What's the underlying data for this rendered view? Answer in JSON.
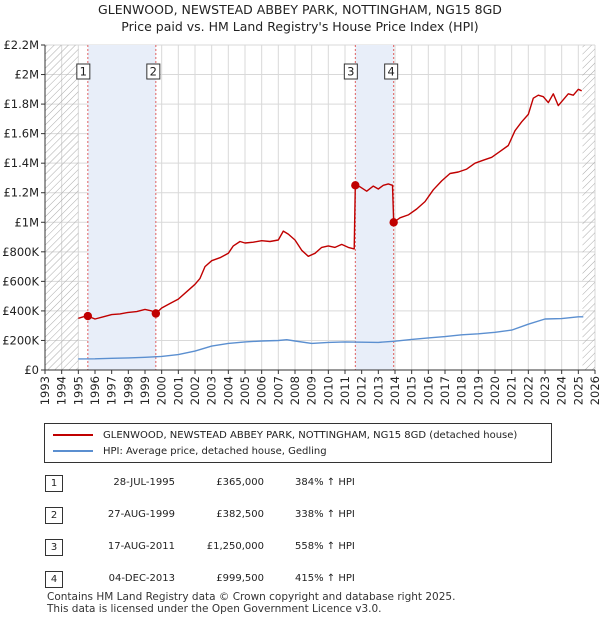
{
  "header": {
    "title_line1": "GLENWOOD, NEWSTEAD ABBEY PARK, NOTTINGHAM, NG15 8GD",
    "title_line2": "Price paid vs. HM Land Registry's House Price Index (HPI)"
  },
  "colors": {
    "property_line": "#c00000",
    "hpi_line": "#5b8fd0",
    "highlight_band": "#e8eef9",
    "hatch": "#999999",
    "grid": "#d9d9d9",
    "marker_line": "#e06060"
  },
  "chart_data": {
    "type": "line",
    "title": "Price paid vs. HM Land Registry's House Price Index (HPI)",
    "xlim": [
      1993,
      2026
    ],
    "ylim": [
      0,
      2200000
    ],
    "x_ticks": [
      "1993",
      "1994",
      "1995",
      "1996",
      "1997",
      "1998",
      "1999",
      "2000",
      "2001",
      "2002",
      "2003",
      "2004",
      "2005",
      "2006",
      "2007",
      "2008",
      "2009",
      "2010",
      "2011",
      "2012",
      "2013",
      "2014",
      "2015",
      "2016",
      "2017",
      "2018",
      "2019",
      "2020",
      "2021",
      "2022",
      "2023",
      "2024",
      "2025",
      "2026"
    ],
    "y_ticks": [
      {
        "value": 0,
        "label": "£0"
      },
      {
        "value": 200000,
        "label": "£200K"
      },
      {
        "value": 400000,
        "label": "£400K"
      },
      {
        "value": 600000,
        "label": "£600K"
      },
      {
        "value": 800000,
        "label": "£800K"
      },
      {
        "value": 1000000,
        "label": "£1M"
      },
      {
        "value": 1200000,
        "label": "£1.2M"
      },
      {
        "value": 1400000,
        "label": "£1.4M"
      },
      {
        "value": 1600000,
        "label": "£1.6M"
      },
      {
        "value": 1800000,
        "label": "£1.8M"
      },
      {
        "value": 2000000,
        "label": "£2M"
      },
      {
        "value": 2200000,
        "label": "£2.2M"
      }
    ],
    "hatched_ranges": [
      [
        1993,
        1995.0
      ],
      [
        2025.25,
        2026
      ]
    ],
    "highlight_bands": [
      [
        1995.57,
        1999.65
      ],
      [
        2011.62,
        2013.92
      ]
    ],
    "series": [
      {
        "name": "GLENWOOD, NEWSTEAD ABBEY PARK, NOTTINGHAM, NG15 8GD (detached house)",
        "color": "#c00000",
        "x": [
          1995.0,
          1995.3,
          1995.57,
          1996.0,
          1996.5,
          1997.0,
          1997.5,
          1998.0,
          1998.5,
          1999.0,
          1999.4,
          1999.65,
          2000.0,
          2000.5,
          2001.0,
          2001.5,
          2002.0,
          2002.3,
          2002.6,
          2003.0,
          2003.5,
          2004.0,
          2004.3,
          2004.7,
          2005.0,
          2005.5,
          2006.0,
          2006.5,
          2007.0,
          2007.3,
          2007.6,
          2008.0,
          2008.4,
          2008.8,
          2009.2,
          2009.6,
          2010.0,
          2010.4,
          2010.8,
          2011.2,
          2011.55,
          2011.62,
          2011.9,
          2012.3,
          2012.7,
          2013.0,
          2013.3,
          2013.6,
          2013.85,
          2013.92,
          2014.3,
          2014.8,
          2015.3,
          2015.8,
          2016.3,
          2016.8,
          2017.3,
          2017.8,
          2018.3,
          2018.8,
          2019.3,
          2019.8,
          2020.3,
          2020.8,
          2021.2,
          2021.6,
          2022.0,
          2022.3,
          2022.6,
          2022.9,
          2023.2,
          2023.5,
          2023.8,
          2024.1,
          2024.4,
          2024.7,
          2025.0,
          2025.2
        ],
        "values": [
          350000,
          360000,
          365000,
          345000,
          360000,
          375000,
          380000,
          390000,
          395000,
          410000,
          400000,
          382500,
          420000,
          450000,
          480000,
          530000,
          580000,
          620000,
          700000,
          740000,
          760000,
          790000,
          840000,
          870000,
          860000,
          865000,
          875000,
          870000,
          880000,
          940000,
          920000,
          880000,
          810000,
          770000,
          790000,
          830000,
          840000,
          830000,
          850000,
          830000,
          820000,
          1250000,
          1240000,
          1210000,
          1245000,
          1225000,
          1250000,
          1260000,
          1250000,
          999500,
          1030000,
          1050000,
          1090000,
          1140000,
          1220000,
          1280000,
          1330000,
          1340000,
          1360000,
          1400000,
          1420000,
          1440000,
          1480000,
          1520000,
          1620000,
          1680000,
          1730000,
          1840000,
          1860000,
          1850000,
          1810000,
          1870000,
          1790000,
          1830000,
          1870000,
          1860000,
          1900000,
          1890000
        ]
      },
      {
        "name": "HPI: Average price, detached house, Gedling",
        "color": "#5b8fd0",
        "x": [
          1995.0,
          1996.0,
          1997.0,
          1998.0,
          1999.0,
          2000.0,
          2001.0,
          2002.0,
          2003.0,
          2004.0,
          2005.0,
          2006.0,
          2007.0,
          2007.5,
          2008.0,
          2009.0,
          2010.0,
          2011.0,
          2012.0,
          2013.0,
          2014.0,
          2015.0,
          2016.0,
          2017.0,
          2018.0,
          2019.0,
          2020.0,
          2021.0,
          2022.0,
          2023.0,
          2024.0,
          2025.0,
          2025.3
        ],
        "values": [
          75000,
          76000,
          79000,
          82000,
          86000,
          92000,
          104000,
          128000,
          162000,
          180000,
          190000,
          196000,
          200000,
          205000,
          196000,
          180000,
          187000,
          190000,
          188000,
          187000,
          195000,
          207000,
          217000,
          226000,
          238000,
          245000,
          255000,
          270000,
          310000,
          345000,
          348000,
          360000,
          360000
        ]
      }
    ],
    "transactions": [
      {
        "id": "1",
        "date": "28-JUL-1995",
        "x": 1995.57,
        "value": 365000,
        "price": "£365,000",
        "hpi": "384% ↑ HPI"
      },
      {
        "id": "2",
        "date": "27-AUG-1999",
        "x": 1999.65,
        "value": 382500,
        "price": "£382,500",
        "hpi": "338% ↑ HPI"
      },
      {
        "id": "3",
        "date": "17-AUG-2011",
        "x": 2011.62,
        "value": 1250000,
        "price": "£1,250,000",
        "hpi": "558% ↑ HPI"
      },
      {
        "id": "4",
        "date": "04-DEC-2013",
        "x": 2013.92,
        "value": 999500,
        "price": "£999,500",
        "hpi": "415% ↑ HPI"
      }
    ]
  },
  "legend": {
    "property_label": "GLENWOOD, NEWSTEAD ABBEY PARK, NOTTINGHAM, NG15 8GD (detached house)",
    "hpi_label": "HPI: Average price, detached house, Gedling"
  },
  "footer": {
    "line1": "Contains HM Land Registry data © Crown copyright and database right 2025.",
    "line2": "This data is licensed under the Open Government Licence v3.0."
  }
}
